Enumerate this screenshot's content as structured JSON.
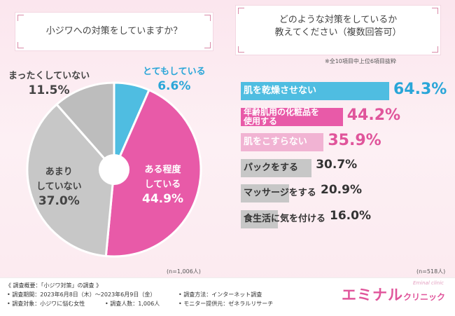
{
  "left_title": "小ジワへの対策をしていますか？",
  "right_title_line1": "どのような対策をしているか",
  "right_title_line2": "教えてください（複数回答可）",
  "note_top": "※全10項目中上位6項目抜粋",
  "n_left": "(n=1,006人)",
  "n_right": "(n=518人)",
  "colors": {
    "blue": "#4fbde1",
    "pink": "#e85aa8",
    "gray": "#c7c7c7",
    "lightpink": "#f1b3d3",
    "darkgray": "#bdbdbd"
  },
  "chart_data": [
    {
      "type": "pie",
      "title": "小ジワへの対策をしていますか？",
      "categories": [
        "とてもしている",
        "ある程度している",
        "あまりしていない",
        "まったくしていない"
      ],
      "values": [
        6.6,
        44.9,
        37.0,
        11.5
      ],
      "labels": [
        {
          "name1": "とてもしている",
          "name2": "",
          "pct": "6.6%"
        },
        {
          "name1": "ある程度",
          "name2": "している",
          "pct": "44.9%"
        },
        {
          "name1": "あまり",
          "name2": "していない",
          "pct": "37.0%"
        },
        {
          "name1": "まったくしていない",
          "name2": "",
          "pct": "11.5%"
        }
      ],
      "n": "n=1,006人"
    },
    {
      "type": "bar",
      "orientation": "horizontal",
      "title": "どのような対策をしているか教えてください（複数回答可）",
      "categories": [
        "肌を乾燥させない",
        "年齢肌用の化粧品を使用する",
        "肌をこすらない",
        "パックをする",
        "マッサージをする",
        "食生活に気を付ける"
      ],
      "values": [
        64.3,
        44.2,
        35.9,
        30.7,
        20.9,
        16.0
      ],
      "labels": [
        {
          "l1": "肌を乾燥させない",
          "l2": "",
          "pct": "64.3%"
        },
        {
          "l1": "年齢肌用の化粧品を",
          "l2": "使用する",
          "pct": "44.2%"
        },
        {
          "l1": "肌をこすらない",
          "l2": "",
          "pct": "35.9%"
        },
        {
          "l1": "パックをする",
          "l2": "",
          "pct": "30.7%"
        },
        {
          "l1": "マッサージをする",
          "l2": "",
          "pct": "20.9%"
        },
        {
          "l1": "食生活に気を付ける",
          "l2": "",
          "pct": "16.0%"
        }
      ],
      "n": "n=518人"
    }
  ],
  "footer": {
    "heading": "《 調査概要：「小ジワ対策」の調査 》",
    "period": "• 調査期間：2023年6月8日（木）〜2023年6月9日（金）",
    "target": "• 調査対象：小ジワに悩む女性",
    "count": "• 調査人数：1,006人",
    "method": "• 調査方法：インターネット調査",
    "provider": "• モニター提供元：ゼネラルリサーチ"
  },
  "logo": {
    "main": "エミナル",
    "sub": "クリニック",
    "tiny": "Eminal clinic"
  }
}
